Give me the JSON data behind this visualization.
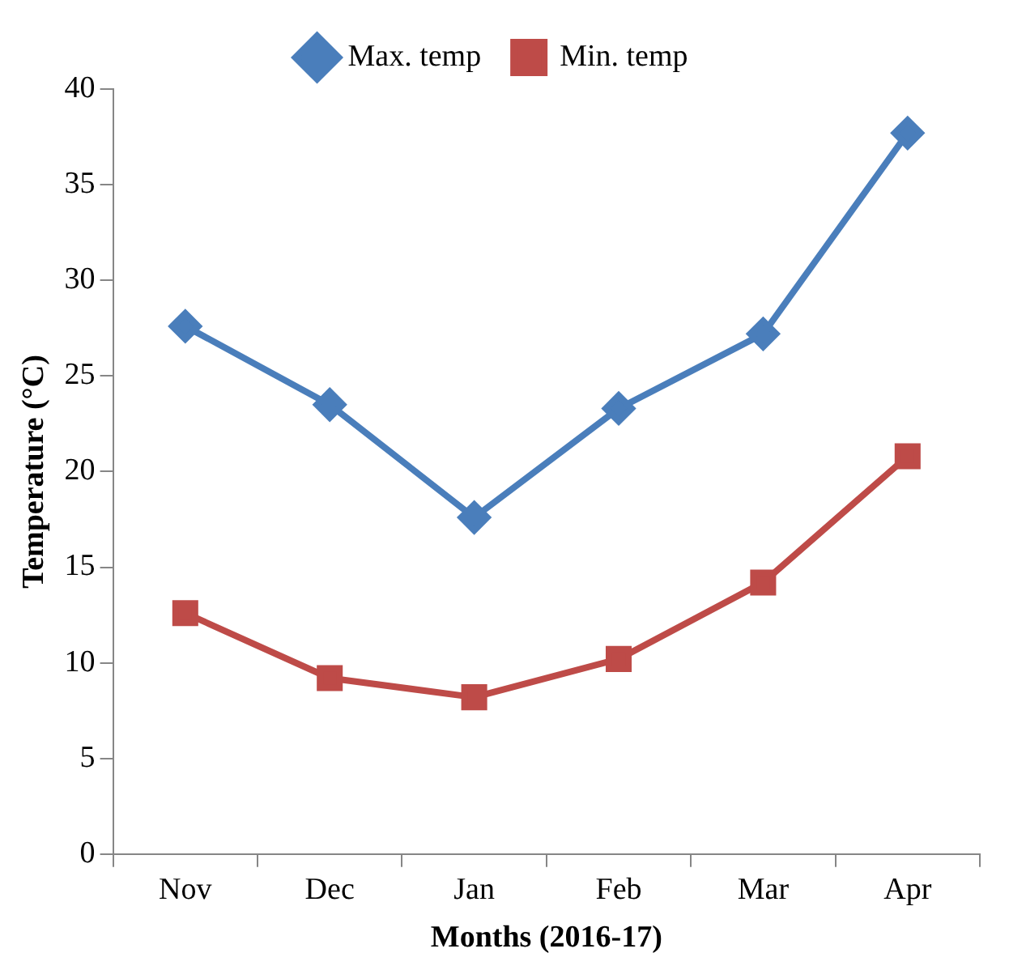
{
  "chart_data": {
    "type": "line",
    "xlabel": "Months (2016-17)",
    "ylabel": "Temperature (°C)",
    "categories": [
      "Nov",
      "Dec",
      "Jan",
      "Feb",
      "Mar",
      "Apr"
    ],
    "series": [
      {
        "name": "Max. temp",
        "color": "#4a7ebb",
        "marker": "diamond",
        "values": [
          27.6,
          23.5,
          17.6,
          23.3,
          27.2,
          37.7
        ]
      },
      {
        "name": "Min. temp",
        "color": "#be4b48",
        "marker": "square",
        "values": [
          12.6,
          9.2,
          8.2,
          10.2,
          14.2,
          20.8
        ]
      }
    ],
    "ylim": [
      0,
      40
    ],
    "yticks": [
      0,
      5,
      10,
      15,
      20,
      25,
      30,
      35,
      40
    ],
    "grid": false,
    "legend": "top",
    "line_style": "solid"
  }
}
